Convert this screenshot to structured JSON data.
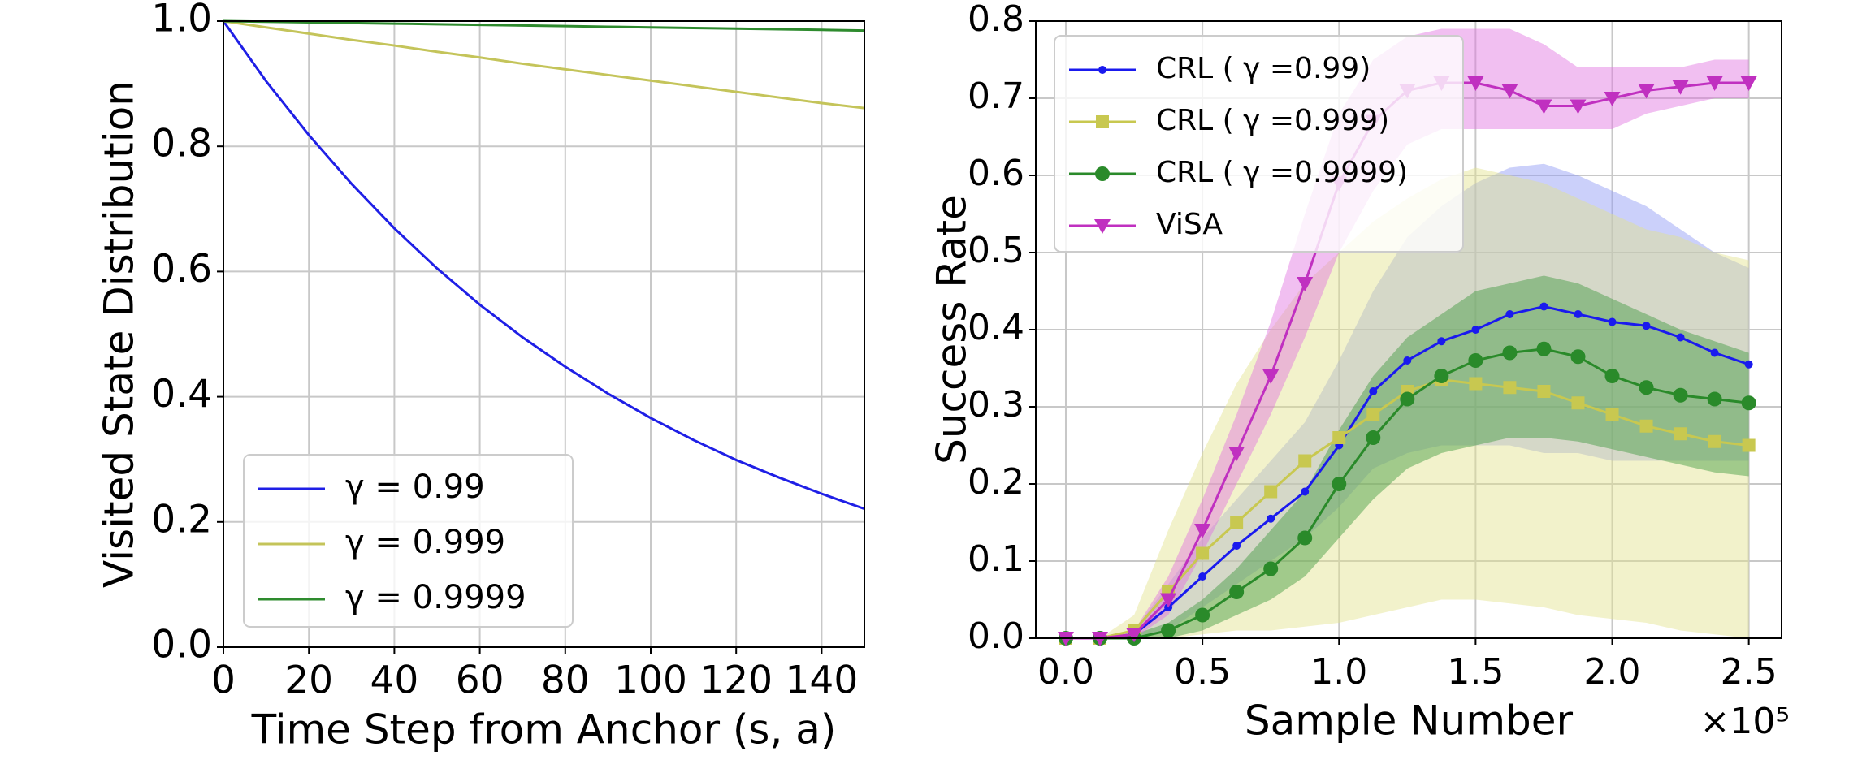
{
  "chart_data": [
    {
      "type": "line",
      "xlabel": "Time Step from Anchor (s, a)",
      "ylabel": "Visited State Distribution",
      "x": [
        0,
        10,
        20,
        30,
        40,
        50,
        60,
        70,
        80,
        90,
        100,
        110,
        120,
        130,
        140,
        150
      ],
      "xlim": [
        0,
        150
      ],
      "xticks": [
        0,
        20,
        40,
        60,
        80,
        100,
        120,
        140
      ],
      "ylim": [
        0,
        1
      ],
      "yticks": [
        {
          "value": 0,
          "label": "0.0"
        },
        0.2,
        0.4,
        0.6,
        0.8,
        {
          "value": 1,
          "label": "1.0"
        }
      ],
      "grid": true,
      "legend": "lower left",
      "series": [
        {
          "name": "γ = 0.99",
          "color": "#1f1fe6",
          "values": [
            1,
            0.904,
            0.818,
            0.74,
            0.669,
            0.605,
            0.547,
            0.495,
            0.448,
            0.405,
            0.366,
            0.331,
            0.299,
            0.271,
            0.245,
            0.221
          ]
        },
        {
          "name": "γ = 0.999",
          "color": "#c4c45a",
          "values": [
            1,
            0.99,
            0.98,
            0.97,
            0.961,
            0.951,
            0.942,
            0.932,
            0.923,
            0.914,
            0.905,
            0.896,
            0.887,
            0.878,
            0.869,
            0.861
          ]
        },
        {
          "name": "γ = 0.9999",
          "color": "#2e8b2e",
          "values": [
            1,
            0.999,
            0.998,
            0.997,
            0.996,
            0.995,
            0.994,
            0.993,
            0.992,
            0.991,
            0.99,
            0.989,
            0.988,
            0.987,
            0.986,
            0.985
          ]
        }
      ]
    },
    {
      "type": "line",
      "xlabel": "Sample Number",
      "x_offset": "×10⁵",
      "ylabel": "Success Rate",
      "x": [
        0,
        0.125,
        0.25,
        0.375,
        0.5,
        0.625,
        0.75,
        0.875,
        1.0,
        1.125,
        1.25,
        1.375,
        1.5,
        1.625,
        1.75,
        1.875,
        2.0,
        2.125,
        2.25,
        2.375,
        2.5
      ],
      "xlim": [
        -0.11,
        2.62
      ],
      "xticks": [
        {
          "value": 0,
          "label": "0.0"
        },
        0.5,
        {
          "value": 1,
          "label": "1.0"
        },
        1.5,
        {
          "value": 2,
          "label": "2.0"
        },
        2.5
      ],
      "ylim": [
        0,
        0.8
      ],
      "yticks": [
        {
          "value": 0,
          "label": "0.0"
        },
        0.1,
        0.2,
        0.3,
        0.4,
        0.5,
        0.6,
        0.7,
        0.8
      ],
      "grid": true,
      "legend": "upper left",
      "series": [
        {
          "name": "CRL ( γ =0.99)",
          "color": "#1a1aee",
          "band_color": "#8c96f5",
          "marker": "dot",
          "values": [
            0,
            0,
            0.005,
            0.04,
            0.08,
            0.12,
            0.155,
            0.19,
            0.25,
            0.32,
            0.36,
            0.385,
            0.4,
            0.42,
            0.43,
            0.42,
            0.41,
            0.405,
            0.39,
            0.37,
            0.355
          ],
          "lower": [
            0,
            0,
            0,
            0.01,
            0.04,
            0.07,
            0.1,
            0.13,
            0.17,
            0.22,
            0.24,
            0.25,
            0.25,
            0.25,
            0.24,
            0.24,
            0.23,
            0.23,
            0.23,
            0.23,
            0.23
          ],
          "upper": [
            0,
            0,
            0.01,
            0.07,
            0.13,
            0.18,
            0.23,
            0.28,
            0.36,
            0.45,
            0.52,
            0.56,
            0.59,
            0.61,
            0.615,
            0.6,
            0.58,
            0.56,
            0.53,
            0.5,
            0.48
          ]
        },
        {
          "name": "CRL ( γ =0.999)",
          "color": "#c8c850",
          "band_color": "#e3e38c",
          "marker": "square",
          "values": [
            0,
            0,
            0.01,
            0.06,
            0.11,
            0.15,
            0.19,
            0.23,
            0.26,
            0.29,
            0.32,
            0.335,
            0.33,
            0.325,
            0.32,
            0.305,
            0.29,
            0.275,
            0.265,
            0.255,
            0.25
          ],
          "lower": [
            0,
            0,
            0,
            0,
            0.005,
            0.01,
            0.01,
            0.015,
            0.02,
            0.03,
            0.04,
            0.05,
            0.05,
            0.045,
            0.04,
            0.03,
            0.025,
            0.02,
            0.01,
            0.005,
            0
          ],
          "upper": [
            0,
            0,
            0.03,
            0.14,
            0.24,
            0.33,
            0.4,
            0.46,
            0.5,
            0.54,
            0.57,
            0.595,
            0.61,
            0.6,
            0.59,
            0.57,
            0.55,
            0.53,
            0.52,
            0.5,
            0.49
          ]
        },
        {
          "name": "CRL ( γ =0.9999)",
          "color": "#2a8a2a",
          "band_color": "#3f9a3f",
          "marker": "circle",
          "values": [
            0,
            0,
            0,
            0.01,
            0.03,
            0.06,
            0.09,
            0.13,
            0.2,
            0.26,
            0.31,
            0.34,
            0.36,
            0.37,
            0.375,
            0.365,
            0.34,
            0.325,
            0.315,
            0.31,
            0.305
          ],
          "lower": [
            0,
            0,
            0,
            0,
            0.01,
            0.03,
            0.05,
            0.08,
            0.13,
            0.18,
            0.22,
            0.24,
            0.25,
            0.26,
            0.26,
            0.255,
            0.245,
            0.235,
            0.225,
            0.215,
            0.21
          ],
          "upper": [
            0,
            0,
            0.005,
            0.02,
            0.05,
            0.09,
            0.14,
            0.19,
            0.27,
            0.34,
            0.39,
            0.42,
            0.45,
            0.46,
            0.47,
            0.46,
            0.44,
            0.42,
            0.4,
            0.385,
            0.37
          ]
        },
        {
          "name": "ViSA",
          "color": "#c030c0",
          "band_color": "#e070e0",
          "marker": "triangle",
          "values": [
            0,
            0,
            0.005,
            0.05,
            0.14,
            0.24,
            0.34,
            0.46,
            0.59,
            0.67,
            0.71,
            0.72,
            0.72,
            0.71,
            0.69,
            0.69,
            0.7,
            0.71,
            0.715,
            0.72,
            0.72
          ],
          "lower": [
            0,
            0,
            0,
            0.03,
            0.11,
            0.2,
            0.29,
            0.39,
            0.5,
            0.58,
            0.64,
            0.66,
            0.66,
            0.66,
            0.66,
            0.66,
            0.66,
            0.68,
            0.69,
            0.7,
            0.7
          ],
          "upper": [
            0,
            0,
            0.01,
            0.08,
            0.18,
            0.29,
            0.41,
            0.55,
            0.68,
            0.75,
            0.78,
            0.79,
            0.79,
            0.79,
            0.77,
            0.74,
            0.74,
            0.74,
            0.74,
            0.75,
            0.75
          ]
        }
      ]
    }
  ]
}
